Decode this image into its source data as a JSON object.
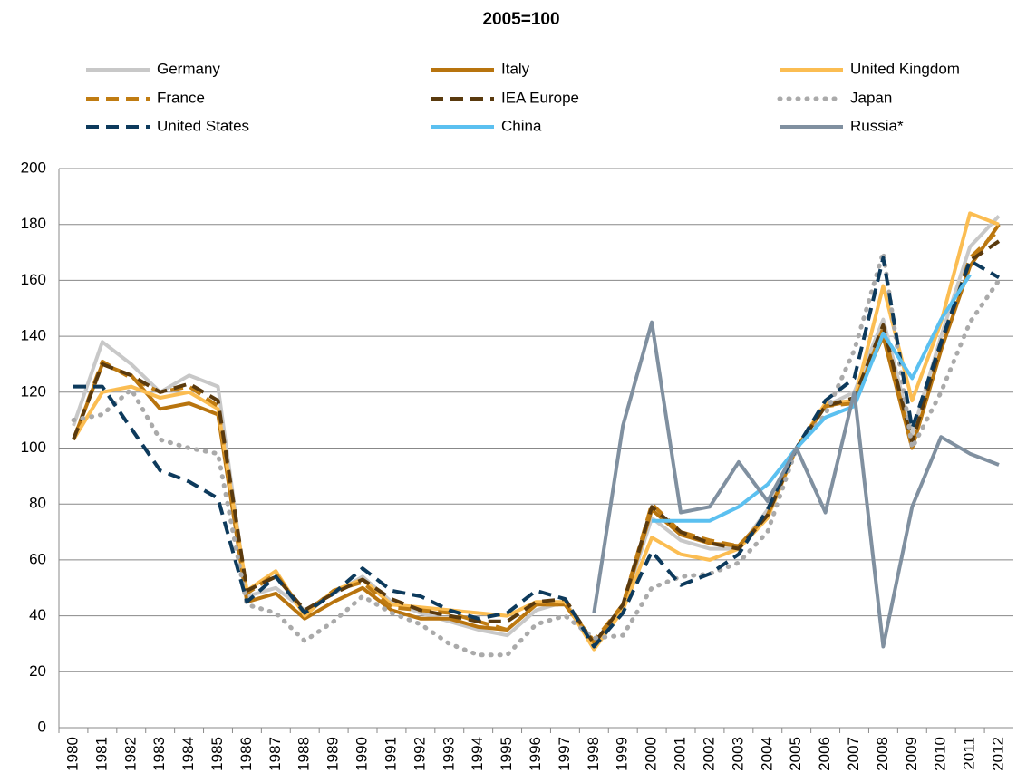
{
  "chart_data": {
    "type": "line",
    "title": "2005=100",
    "categories": [
      "1980",
      "1981",
      "1982",
      "1983",
      "1984",
      "1985",
      "1986",
      "1987",
      "1988",
      "1989",
      "1990",
      "1991",
      "1992",
      "1993",
      "1994",
      "1995",
      "1996",
      "1997",
      "1998",
      "1999",
      "2000",
      "2001",
      "2002",
      "2003",
      "2004",
      "2005",
      "2006",
      "2007",
      "2008",
      "2009",
      "2010",
      "2011",
      "2012"
    ],
    "ylim": [
      0,
      200
    ],
    "yticks": [
      0,
      20,
      40,
      60,
      80,
      100,
      120,
      140,
      160,
      180,
      200
    ],
    "grid": true,
    "legend": "top",
    "series": [
      {
        "name": "Germany",
        "color": "#c8c8c8",
        "dash": "solid",
        "values": [
          108,
          138,
          130,
          120,
          126,
          122,
          47,
          50,
          42,
          48,
          54,
          45,
          41,
          38,
          35,
          33,
          42,
          45,
          30,
          43,
          75,
          67,
          64,
          64,
          78,
          100,
          115,
          120,
          146,
          105,
          140,
          172,
          183
        ]
      },
      {
        "name": "Italy",
        "color": "#b8740e",
        "dash": "solid",
        "values": [
          103,
          130,
          126,
          114,
          116,
          112,
          45,
          48,
          39,
          45,
          50,
          42,
          39,
          39,
          36,
          35,
          44,
          44,
          30,
          43,
          78,
          69,
          66,
          65,
          76,
          100,
          115,
          117,
          140,
          100,
          135,
          165,
          180
        ]
      },
      {
        "name": "United Kingdom",
        "color": "#fbbd52",
        "dash": "solid",
        "values": [
          103,
          120,
          122,
          118,
          120,
          114,
          49,
          56,
          40,
          49,
          53,
          44,
          43,
          42,
          41,
          40,
          45,
          45,
          28,
          42,
          68,
          62,
          60,
          64,
          75,
          100,
          116,
          117,
          158,
          117,
          145,
          184,
          180
        ]
      },
      {
        "name": "France",
        "color": "#c07c12",
        "dash": "dashed",
        "values": [
          103,
          131,
          125,
          120,
          122,
          115,
          48,
          55,
          41,
          49,
          52,
          43,
          42,
          41,
          38,
          35,
          44,
          44,
          31,
          44,
          80,
          70,
          67,
          65,
          76,
          100,
          115,
          116,
          143,
          100,
          137,
          168,
          178
        ]
      },
      {
        "name": "IEA Europe",
        "color": "#5a3a0e",
        "dash": "dashed",
        "values": [
          103,
          130,
          126,
          120,
          123,
          117,
          49,
          54,
          42,
          48,
          53,
          46,
          42,
          40,
          38,
          38,
          45,
          46,
          30,
          44,
          79,
          70,
          66,
          64,
          76,
          100,
          115,
          118,
          144,
          102,
          137,
          167,
          174
        ]
      },
      {
        "name": "Japan",
        "color": "#aaaaaa",
        "dash": "dotted",
        "values": [
          110,
          112,
          121,
          103,
          100,
          98,
          44,
          41,
          31,
          38,
          47,
          41,
          37,
          30,
          26,
          26,
          37,
          40,
          32,
          33,
          50,
          54,
          55,
          59,
          70,
          100,
          112,
          135,
          170,
          100,
          120,
          145,
          160
        ]
      },
      {
        "name": "United States",
        "color": "#0d3a5c",
        "dash": "dashed",
        "values": [
          122,
          122,
          107,
          92,
          88,
          82,
          45,
          54,
          41,
          48,
          57,
          49,
          47,
          42,
          39,
          41,
          49,
          46,
          29,
          41,
          63,
          51,
          55,
          62,
          78,
          100,
          117,
          125,
          168,
          107,
          138,
          167,
          161
        ]
      },
      {
        "name": "China",
        "color": "#5bc0f0",
        "dash": "solid",
        "values": [
          null,
          null,
          null,
          null,
          null,
          null,
          null,
          null,
          null,
          null,
          null,
          null,
          null,
          null,
          null,
          null,
          null,
          null,
          null,
          null,
          74,
          74,
          74,
          79,
          87,
          100,
          111,
          115,
          141,
          125,
          146,
          162,
          null
        ]
      },
      {
        "name": "Russia*",
        "color": "#8090a0",
        "dash": "solid",
        "values": [
          null,
          null,
          null,
          null,
          null,
          null,
          null,
          null,
          null,
          null,
          null,
          null,
          null,
          null,
          null,
          null,
          null,
          null,
          41,
          108,
          145,
          77,
          79,
          95,
          81,
          100,
          77,
          120,
          29,
          79,
          104,
          98,
          94
        ]
      }
    ]
  }
}
